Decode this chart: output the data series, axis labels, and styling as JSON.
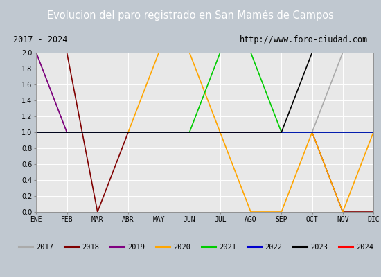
{
  "title": "Evolucion del paro registrado en San Mamés de Campos",
  "subtitle_left": "2017 - 2024",
  "subtitle_right": "http://www.foro-ciudad.com",
  "x_labels": [
    "ENE",
    "FEB",
    "MAR",
    "ABR",
    "MAY",
    "JUN",
    "JUL",
    "AGO",
    "SEP",
    "OCT",
    "NOV",
    "DIC"
  ],
  "ylim": [
    0.0,
    2.0
  ],
  "yticks": [
    0.0,
    0.2,
    0.4,
    0.6,
    0.8,
    1.0,
    1.2,
    1.4,
    1.6,
    1.8,
    2.0
  ],
  "series": {
    "2017": {
      "color": "#aaaaaa",
      "data": [
        2,
        1,
        1,
        1,
        1,
        1,
        1,
        1,
        1,
        1,
        2,
        2
      ]
    },
    "2018": {
      "color": "#800000",
      "data": [
        2,
        2,
        0,
        1,
        1,
        1,
        1,
        1,
        1,
        1,
        0,
        0
      ]
    },
    "2019": {
      "color": "#800080",
      "data": [
        2,
        1,
        1,
        1,
        1,
        1,
        1,
        1,
        1,
        1,
        1,
        1
      ]
    },
    "2020": {
      "color": "#ffa500",
      "data": [
        1,
        1,
        1,
        1,
        2,
        2,
        1,
        0,
        0,
        1,
        0,
        1
      ]
    },
    "2021": {
      "color": "#00cc00",
      "data": [
        1,
        1,
        1,
        1,
        1,
        1,
        2,
        2,
        1,
        1,
        1,
        1
      ]
    },
    "2022": {
      "color": "#0000cd",
      "data": [
        1,
        1,
        1,
        1,
        1,
        1,
        1,
        1,
        1,
        1,
        1,
        1
      ]
    },
    "2023": {
      "color": "#000000",
      "data": [
        1,
        1,
        1,
        1,
        1,
        1,
        1,
        1,
        1,
        2,
        2,
        2
      ]
    },
    "2024": {
      "color": "#ff0000",
      "data": [
        2,
        2,
        2,
        2,
        2,
        null,
        null,
        null,
        null,
        null,
        null,
        null
      ]
    }
  },
  "year_order": [
    "2017",
    "2018",
    "2019",
    "2020",
    "2021",
    "2022",
    "2023",
    "2024"
  ],
  "title_bg_color": "#4472c4",
  "title_text_color": "#ffffff",
  "subtitle_bg_color": "#d9d9d9",
  "plot_bg_color": "#e8e8e8",
  "outer_bg_color": "#c0c8d0",
  "grid_color": "#ffffff",
  "legend_border_color": "#888888"
}
